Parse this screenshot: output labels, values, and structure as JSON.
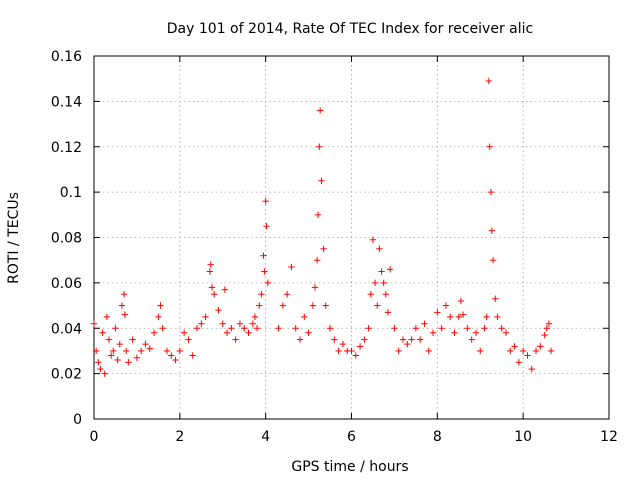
{
  "chart_data": {
    "type": "scatter",
    "title": "Day 101 of 2014, Rate Of TEC Index for receiver alic",
    "xlabel": "GPS time / hours",
    "ylabel": "ROTI / TECUs",
    "xlim": [
      0,
      12
    ],
    "ylim": [
      0,
      0.16
    ],
    "xticks": [
      0,
      2,
      4,
      6,
      8,
      10,
      12
    ],
    "xtick_labels": [
      "0",
      "2",
      "4",
      "6",
      "8",
      "10",
      "12"
    ],
    "yticks": [
      0,
      0.02,
      0.04,
      0.06,
      0.08,
      0.1,
      0.12,
      0.14,
      0.16
    ],
    "ytick_labels": [
      "0",
      "0.02",
      "0.04",
      "0.06",
      "0.08",
      "0.1",
      "0.12",
      "0.14",
      "0.16"
    ],
    "grid": true,
    "marker": "+",
    "color": "#ff0000",
    "series": [
      {
        "name": "ROTI",
        "x": [
          0.0,
          0.05,
          0.1,
          0.15,
          0.2,
          0.25,
          0.3,
          0.35,
          0.4,
          0.45,
          0.5,
          0.55,
          0.6,
          0.65,
          0.7,
          0.72,
          0.75,
          0.8,
          0.9,
          1.0,
          1.1,
          1.2,
          1.3,
          1.4,
          1.5,
          1.55,
          1.6,
          1.7,
          1.8,
          1.9,
          2.0,
          2.1,
          2.2,
          2.3,
          2.4,
          2.5,
          2.6,
          2.7,
          2.72,
          2.75,
          2.8,
          2.9,
          3.0,
          3.05,
          3.1,
          3.2,
          3.3,
          3.4,
          3.5,
          3.6,
          3.7,
          3.75,
          3.8,
          3.85,
          3.9,
          3.95,
          3.97,
          4.0,
          4.02,
          4.05,
          4.3,
          4.4,
          4.5,
          4.6,
          4.7,
          4.8,
          4.9,
          5.0,
          5.1,
          5.15,
          5.2,
          5.22,
          5.25,
          5.27,
          5.3,
          5.35,
          5.4,
          5.5,
          5.6,
          5.7,
          5.8,
          5.9,
          6.0,
          6.1,
          6.2,
          6.3,
          6.4,
          6.45,
          6.5,
          6.55,
          6.6,
          6.65,
          6.7,
          6.75,
          6.8,
          6.85,
          6.9,
          7.0,
          7.1,
          7.2,
          7.3,
          7.4,
          7.5,
          7.6,
          7.7,
          7.8,
          7.9,
          8.0,
          8.1,
          8.2,
          8.3,
          8.4,
          8.5,
          8.55,
          8.6,
          8.7,
          8.8,
          8.9,
          9.0,
          9.1,
          9.15,
          9.2,
          9.22,
          9.25,
          9.27,
          9.3,
          9.35,
          9.4,
          9.5,
          9.6,
          9.7,
          9.8,
          9.9,
          10.0,
          10.1,
          10.2,
          10.3,
          10.4,
          10.5,
          10.55,
          10.6,
          10.65
        ],
        "values": [
          0.042,
          0.03,
          0.025,
          0.022,
          0.038,
          0.02,
          0.045,
          0.035,
          0.028,
          0.03,
          0.04,
          0.026,
          0.033,
          0.05,
          0.055,
          0.046,
          0.03,
          0.025,
          0.035,
          0.027,
          0.03,
          0.033,
          0.031,
          0.038,
          0.045,
          0.05,
          0.04,
          0.03,
          0.028,
          0.026,
          0.03,
          0.038,
          0.035,
          0.028,
          0.04,
          0.042,
          0.045,
          0.065,
          0.068,
          0.058,
          0.055,
          0.048,
          0.042,
          0.057,
          0.038,
          0.04,
          0.035,
          0.042,
          0.04,
          0.038,
          0.042,
          0.045,
          0.04,
          0.05,
          0.055,
          0.072,
          0.065,
          0.096,
          0.085,
          0.06,
          0.04,
          0.05,
          0.055,
          0.067,
          0.04,
          0.035,
          0.045,
          0.038,
          0.05,
          0.058,
          0.07,
          0.09,
          0.12,
          0.136,
          0.105,
          0.075,
          0.05,
          0.04,
          0.035,
          0.03,
          0.033,
          0.03,
          0.03,
          0.028,
          0.032,
          0.035,
          0.04,
          0.055,
          0.079,
          0.06,
          0.05,
          0.075,
          0.065,
          0.06,
          0.055,
          0.047,
          0.066,
          0.04,
          0.03,
          0.035,
          0.033,
          0.035,
          0.04,
          0.035,
          0.042,
          0.03,
          0.038,
          0.047,
          0.04,
          0.05,
          0.045,
          0.038,
          0.045,
          0.052,
          0.046,
          0.04,
          0.035,
          0.038,
          0.03,
          0.04,
          0.045,
          0.149,
          0.12,
          0.1,
          0.083,
          0.07,
          0.053,
          0.045,
          0.04,
          0.038,
          0.03,
          0.032,
          0.025,
          0.03,
          0.028,
          0.022,
          0.03,
          0.032,
          0.037,
          0.04,
          0.042,
          0.03
        ]
      }
    ]
  }
}
